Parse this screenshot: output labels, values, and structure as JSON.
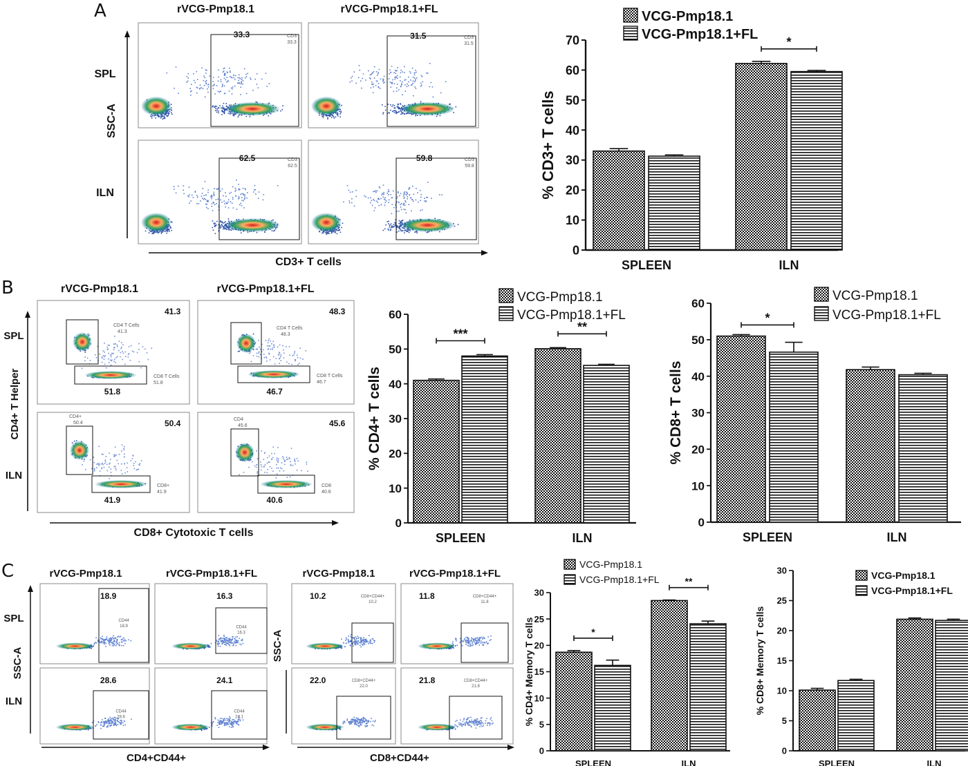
{
  "panels": {
    "A": {
      "letter": "A",
      "flow": {
        "col_labels": [
          "rVCG-Pmp18.1",
          "rVCG-Pmp18.1+FL"
        ],
        "row_labels": [
          "SPL",
          "ILN"
        ],
        "y_label": "SSC-A",
        "x_label": "CD3+ T cells",
        "gate_values": [
          "33.3",
          "31.5",
          "62.5",
          "59.8"
        ],
        "gate_tags": [
          "CD3",
          "CD3",
          "CD3",
          "CD3"
        ]
      }
    },
    "B": {
      "letter": "B",
      "flow": {
        "col_labels": [
          "rVCG-Pmp18.1",
          "rVCG-Pmp18.1+FL"
        ],
        "row_labels": [
          "SPL",
          "ILN"
        ],
        "y_label": "CD4+ T Helper",
        "x_label": "CD8+ Cytotoxic T cells",
        "upper_values": [
          "41.3",
          "48.3",
          "50.4",
          "45.6"
        ],
        "lower_values": [
          "51.8",
          "46.7",
          "41.9",
          "40.6"
        ],
        "upper_tags": [
          "CD4 T Cells",
          "CD4 T Cells",
          "CD4+",
          "CD4"
        ],
        "lower_tags": [
          "CD8 T Cells",
          "CD8 T Cells",
          "CD8+",
          "CD8"
        ]
      }
    },
    "C": {
      "letter": "C",
      "flow_cd4": {
        "col_labels": [
          "rVCG-Pmp18.1",
          "rVCG-Pmp18.1+FL"
        ],
        "row_labels": [
          "SPL",
          "ILN"
        ],
        "y_label": "SSC-A",
        "x_label": "CD4+CD44+",
        "gate_values": [
          "18.9",
          "16.3",
          "28.6",
          "24.1"
        ],
        "gate_tags": [
          "CD44",
          "CD44",
          "CD44",
          "CD44"
        ]
      },
      "flow_cd8": {
        "col_labels": [
          "rVCG-Pmp18.1",
          "rVCG-Pmp18.1+FL"
        ],
        "y_label": "SSC-A",
        "x_label": "CD8+CD44+",
        "gate_values": [
          "10.2",
          "11.8",
          "22.0",
          "21.8"
        ],
        "gate_tags": [
          "CD8+CD44+",
          "CD8+CD44+",
          "CD8+CD44+",
          "CD8+CD44+"
        ]
      }
    }
  },
  "chart_data": [
    {
      "id": "A-cd3",
      "type": "bar",
      "categories": [
        "SPLEEN",
        "ILN"
      ],
      "series": [
        {
          "name": "VCG-Pmp18.1",
          "values": [
            33,
            62.2
          ],
          "errors": [
            0.8,
            0.7
          ]
        },
        {
          "name": "VCG-Pmp18.1+FL",
          "values": [
            31.3,
            59.5
          ],
          "errors": [
            0.4,
            0.4
          ]
        }
      ],
      "ylabel": "% CD3+ T cells",
      "ylim": [
        0,
        70
      ],
      "yticks": [
        0,
        10,
        20,
        30,
        40,
        50,
        60,
        70
      ],
      "significance": [
        {
          "category": "ILN",
          "label": "*"
        }
      ]
    },
    {
      "id": "B-cd4",
      "type": "bar",
      "categories": [
        "SPLEEN",
        "ILN"
      ],
      "series": [
        {
          "name": "VCG-Pmp18.1",
          "values": [
            41,
            50.1
          ],
          "errors": [
            0.4,
            0.3
          ]
        },
        {
          "name": "VCG-Pmp18.1+FL",
          "values": [
            48,
            45.3
          ],
          "errors": [
            0.4,
            0.3
          ]
        }
      ],
      "ylabel": "% CD4+ T cells",
      "ylim": [
        0,
        60
      ],
      "yticks": [
        0,
        10,
        20,
        30,
        40,
        50,
        60
      ],
      "significance": [
        {
          "category": "SPLEEN",
          "label": "***"
        },
        {
          "category": "ILN",
          "label": "**"
        }
      ]
    },
    {
      "id": "B-cd8",
      "type": "bar",
      "categories": [
        "SPLEEN",
        "ILN"
      ],
      "series": [
        {
          "name": "VCG-Pmp18.1",
          "values": [
            51,
            41.8
          ],
          "errors": [
            0.4,
            0.7
          ]
        },
        {
          "name": "VCG-Pmp18.1+FL",
          "values": [
            46.6,
            40.4
          ],
          "errors": [
            2.7,
            0.4
          ]
        }
      ],
      "ylabel": "% CD8+ T cells",
      "ylim": [
        0,
        60
      ],
      "yticks": [
        0,
        10,
        20,
        30,
        40,
        50,
        60
      ],
      "significance": [
        {
          "category": "SPLEEN",
          "label": "*"
        }
      ]
    },
    {
      "id": "C-cd4mem",
      "type": "bar",
      "categories": [
        "SPLEEN",
        "ILN"
      ],
      "series": [
        {
          "name": "VCG-Pmp18.1",
          "values": [
            18.7,
            28.5
          ],
          "errors": [
            0.3,
            0.1
          ]
        },
        {
          "name": "VCG-Pmp18.1+FL",
          "values": [
            16.2,
            24.1
          ],
          "errors": [
            1.0,
            0.5
          ]
        }
      ],
      "ylabel": "% CD4+ Memory T cells",
      "ylim": [
        0,
        30
      ],
      "yticks": [
        0,
        5,
        10,
        15,
        20,
        25,
        30
      ],
      "significance": [
        {
          "category": "SPLEEN",
          "label": "*"
        },
        {
          "category": "ILN",
          "label": "**"
        }
      ]
    },
    {
      "id": "C-cd8mem",
      "type": "bar",
      "categories": [
        "SPLEEN",
        "ILN"
      ],
      "series": [
        {
          "name": "VCG-Pmp18.1",
          "values": [
            10.1,
            21.9
          ],
          "errors": [
            0.3,
            0.2
          ]
        },
        {
          "name": "VCG-Pmp18.1+FL",
          "values": [
            11.7,
            21.7
          ],
          "errors": [
            0.2,
            0.2
          ]
        }
      ],
      "ylabel": "% CD8+ Memory T cells",
      "ylim": [
        0,
        30
      ],
      "yticks": [
        0,
        5,
        10,
        15,
        20,
        25,
        30
      ],
      "significance": []
    }
  ]
}
